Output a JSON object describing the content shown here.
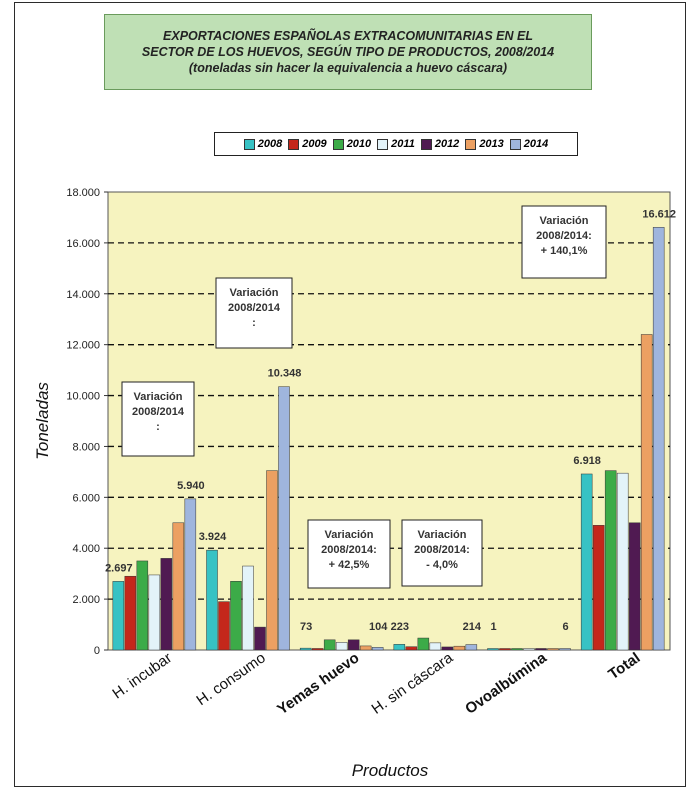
{
  "title_lines": [
    "EXPORTACIONES ESPAÑOLAS EXTRACOMUNITARIAS EN EL",
    "SECTOR DE LOS HUEVOS, SEGÚN TIPO DE PRODUCTOS, 2008/2014",
    "(toneladas sin hacer la equivalencia a huevo cáscara)"
  ],
  "colors": {
    "plot_bg": "#f6f3bf",
    "series": [
      "#37c2c4",
      "#c4271b",
      "#3cab48",
      "#e3f3f9",
      "#501a52",
      "#eca062",
      "#9fb5dd"
    ]
  },
  "annotations": [
    {
      "lines": [
        "Variación",
        "2008/2014",
        ":"
      ],
      "category": "H. incubar"
    },
    {
      "lines": [
        "Variación",
        "2008/2014",
        ":"
      ],
      "category": "H. consumo"
    },
    {
      "lines": [
        "Variación",
        "2008/2014:",
        "+ 42,5%"
      ],
      "category": "Yemas huevo"
    },
    {
      "lines": [
        "Variación",
        "2008/2014:",
        "- 4,0%"
      ],
      "category": "H. sin cáscara"
    },
    {
      "lines": [
        "Variación",
        "2008/2014:",
        "+ 140,1%"
      ],
      "category": "Total"
    }
  ],
  "chart_data": {
    "type": "bar",
    "title": "EXPORTACIONES ESPAÑOLAS EXTRACOMUNITARIAS EN EL SECTOR DE LOS HUEVOS, SEGÚN TIPO DE PRODUCTOS, 2008/2014",
    "subtitle": "(toneladas sin hacer la equivalencia a huevo cáscara)",
    "xlabel": "Productos",
    "ylabel": "Toneladas",
    "ylim": [
      0,
      18000
    ],
    "yticks": [
      0,
      2000,
      4000,
      6000,
      8000,
      10000,
      12000,
      14000,
      16000,
      18000
    ],
    "ytick_labels": [
      "0",
      "2.000",
      "4.000",
      "6.000",
      "8.000",
      "10.000",
      "12.000",
      "14.000",
      "16.000",
      "18.000"
    ],
    "grid": "dashed horizontal",
    "legend_position": "top",
    "categories": [
      "H. incubar",
      "H. consumo",
      "Yemas huevo",
      "H. sin cáscara",
      "Ovoalbúmina",
      "Total"
    ],
    "series": [
      {
        "name": "2008",
        "values": [
          2697,
          3924,
          73,
          223,
          1,
          6918
        ]
      },
      {
        "name": "2009",
        "values": [
          2900,
          1900,
          60,
          130,
          30,
          4900
        ]
      },
      {
        "name": "2010",
        "values": [
          3500,
          2700,
          400,
          470,
          50,
          7050
        ]
      },
      {
        "name": "2011",
        "values": [
          2950,
          3300,
          300,
          280,
          40,
          6950
        ]
      },
      {
        "name": "2012",
        "values": [
          3600,
          900,
          400,
          120,
          60,
          5000
        ]
      },
      {
        "name": "2013",
        "values": [
          5000,
          7050,
          160,
          150,
          30,
          12400
        ]
      },
      {
        "name": "2014",
        "values": [
          5940,
          10348,
          104,
          214,
          6,
          16612
        ]
      }
    ],
    "data_labels": [
      {
        "category": "H. incubar",
        "series": "2008",
        "text": "2.697"
      },
      {
        "category": "H. incubar",
        "series": "2014",
        "text": "5.940"
      },
      {
        "category": "H. consumo",
        "series": "2008",
        "text": "3.924"
      },
      {
        "category": "H. consumo",
        "series": "2014",
        "text": "10.348"
      },
      {
        "category": "Yemas huevo",
        "series": "2008",
        "text": "73"
      },
      {
        "category": "Yemas huevo",
        "series": "2014",
        "text": "104"
      },
      {
        "category": "H. sin cáscara",
        "series": "2008",
        "text": "223"
      },
      {
        "category": "H. sin cáscara",
        "series": "2014",
        "text": "214"
      },
      {
        "category": "Ovoalbúmina",
        "series": "2008",
        "text": "1"
      },
      {
        "category": "Ovoalbúmina",
        "series": "2014",
        "text": "6"
      },
      {
        "category": "Total",
        "series": "2008",
        "text": "6.918"
      },
      {
        "category": "Total",
        "series": "2014",
        "text": "16.612"
      }
    ]
  }
}
